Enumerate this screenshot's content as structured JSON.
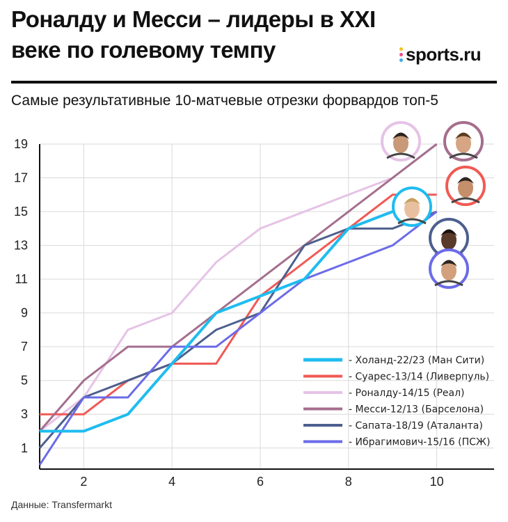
{
  "header": {
    "title": "Роналду и Месси – лидеры в XXI веке по голевому темпу",
    "brand": "sports.ru",
    "subtitle": "Самые результативные 10-матчевые отрезки форвардов топ-5"
  },
  "footer": {
    "source": "Данные: Transfermarkt"
  },
  "colors": {
    "brand_dots": [
      "#f2c21b",
      "#e94e8a",
      "#3ba9e8"
    ]
  },
  "chart_data": {
    "type": "line",
    "x_ticks": [
      "2",
      "4",
      "6",
      "8",
      "10"
    ],
    "y_ticks": [
      "1",
      "3",
      "5",
      "7",
      "9",
      "11",
      "13",
      "15",
      "17",
      "19"
    ],
    "xlim": [
      1,
      11.3
    ],
    "ylim": [
      0,
      20
    ],
    "grid": true,
    "legend_position": "bottom-right",
    "series": [
      {
        "name": "Холанд-22/23 (Ман Сити)",
        "color": "#1fbcef",
        "width": 4,
        "avatar": "haaland",
        "x": [
          1,
          2,
          3,
          4,
          5,
          6,
          7,
          8,
          9,
          9.5
        ],
        "y": [
          2,
          2,
          3,
          6,
          9,
          10,
          11,
          14,
          15,
          15
        ]
      },
      {
        "name": "Суарес-13/14 (Ливерпуль)",
        "color": "#f05a55",
        "width": 3,
        "avatar": "suarez",
        "x": [
          1,
          2,
          3,
          4,
          5,
          6,
          7,
          8,
          9,
          10
        ],
        "y": [
          3,
          3,
          5,
          6,
          6,
          10,
          12,
          14,
          16,
          16
        ]
      },
      {
        "name": "Роналду-14/15 (Реал)",
        "color": "#e6c3e6",
        "width": 3,
        "avatar": "ronaldo",
        "x": [
          1,
          2,
          3,
          4,
          5,
          6,
          7,
          8,
          9,
          10
        ],
        "y": [
          2,
          4,
          8,
          9,
          12,
          14,
          15,
          16,
          17,
          19
        ]
      },
      {
        "name": "Месси-12/13 (Барселона)",
        "color": "#a46e8e",
        "width": 3,
        "avatar": "messi",
        "x": [
          1,
          2,
          3,
          4,
          5,
          6,
          7,
          8,
          9,
          10
        ],
        "y": [
          2,
          5,
          7,
          7,
          9,
          11,
          13,
          15,
          17,
          19
        ]
      },
      {
        "name": "Сапата-18/19 (Аталанта)",
        "color": "#4d5f8e",
        "width": 3,
        "avatar": "zapata",
        "x": [
          1,
          2,
          3,
          4,
          5,
          6,
          7,
          8,
          9,
          10
        ],
        "y": [
          1,
          4,
          5,
          6,
          8,
          9,
          13,
          14,
          14,
          15
        ]
      },
      {
        "name": "Ибрагимович-15/16 (ПСЖ)",
        "color": "#6b6be8",
        "width": 3,
        "avatar": "ibrahimovic",
        "x": [
          1,
          2,
          3,
          4,
          5,
          6,
          7,
          8,
          9,
          10
        ],
        "y": [
          0,
          4,
          4,
          7,
          7,
          9,
          11,
          12,
          13,
          15
        ]
      }
    ]
  }
}
